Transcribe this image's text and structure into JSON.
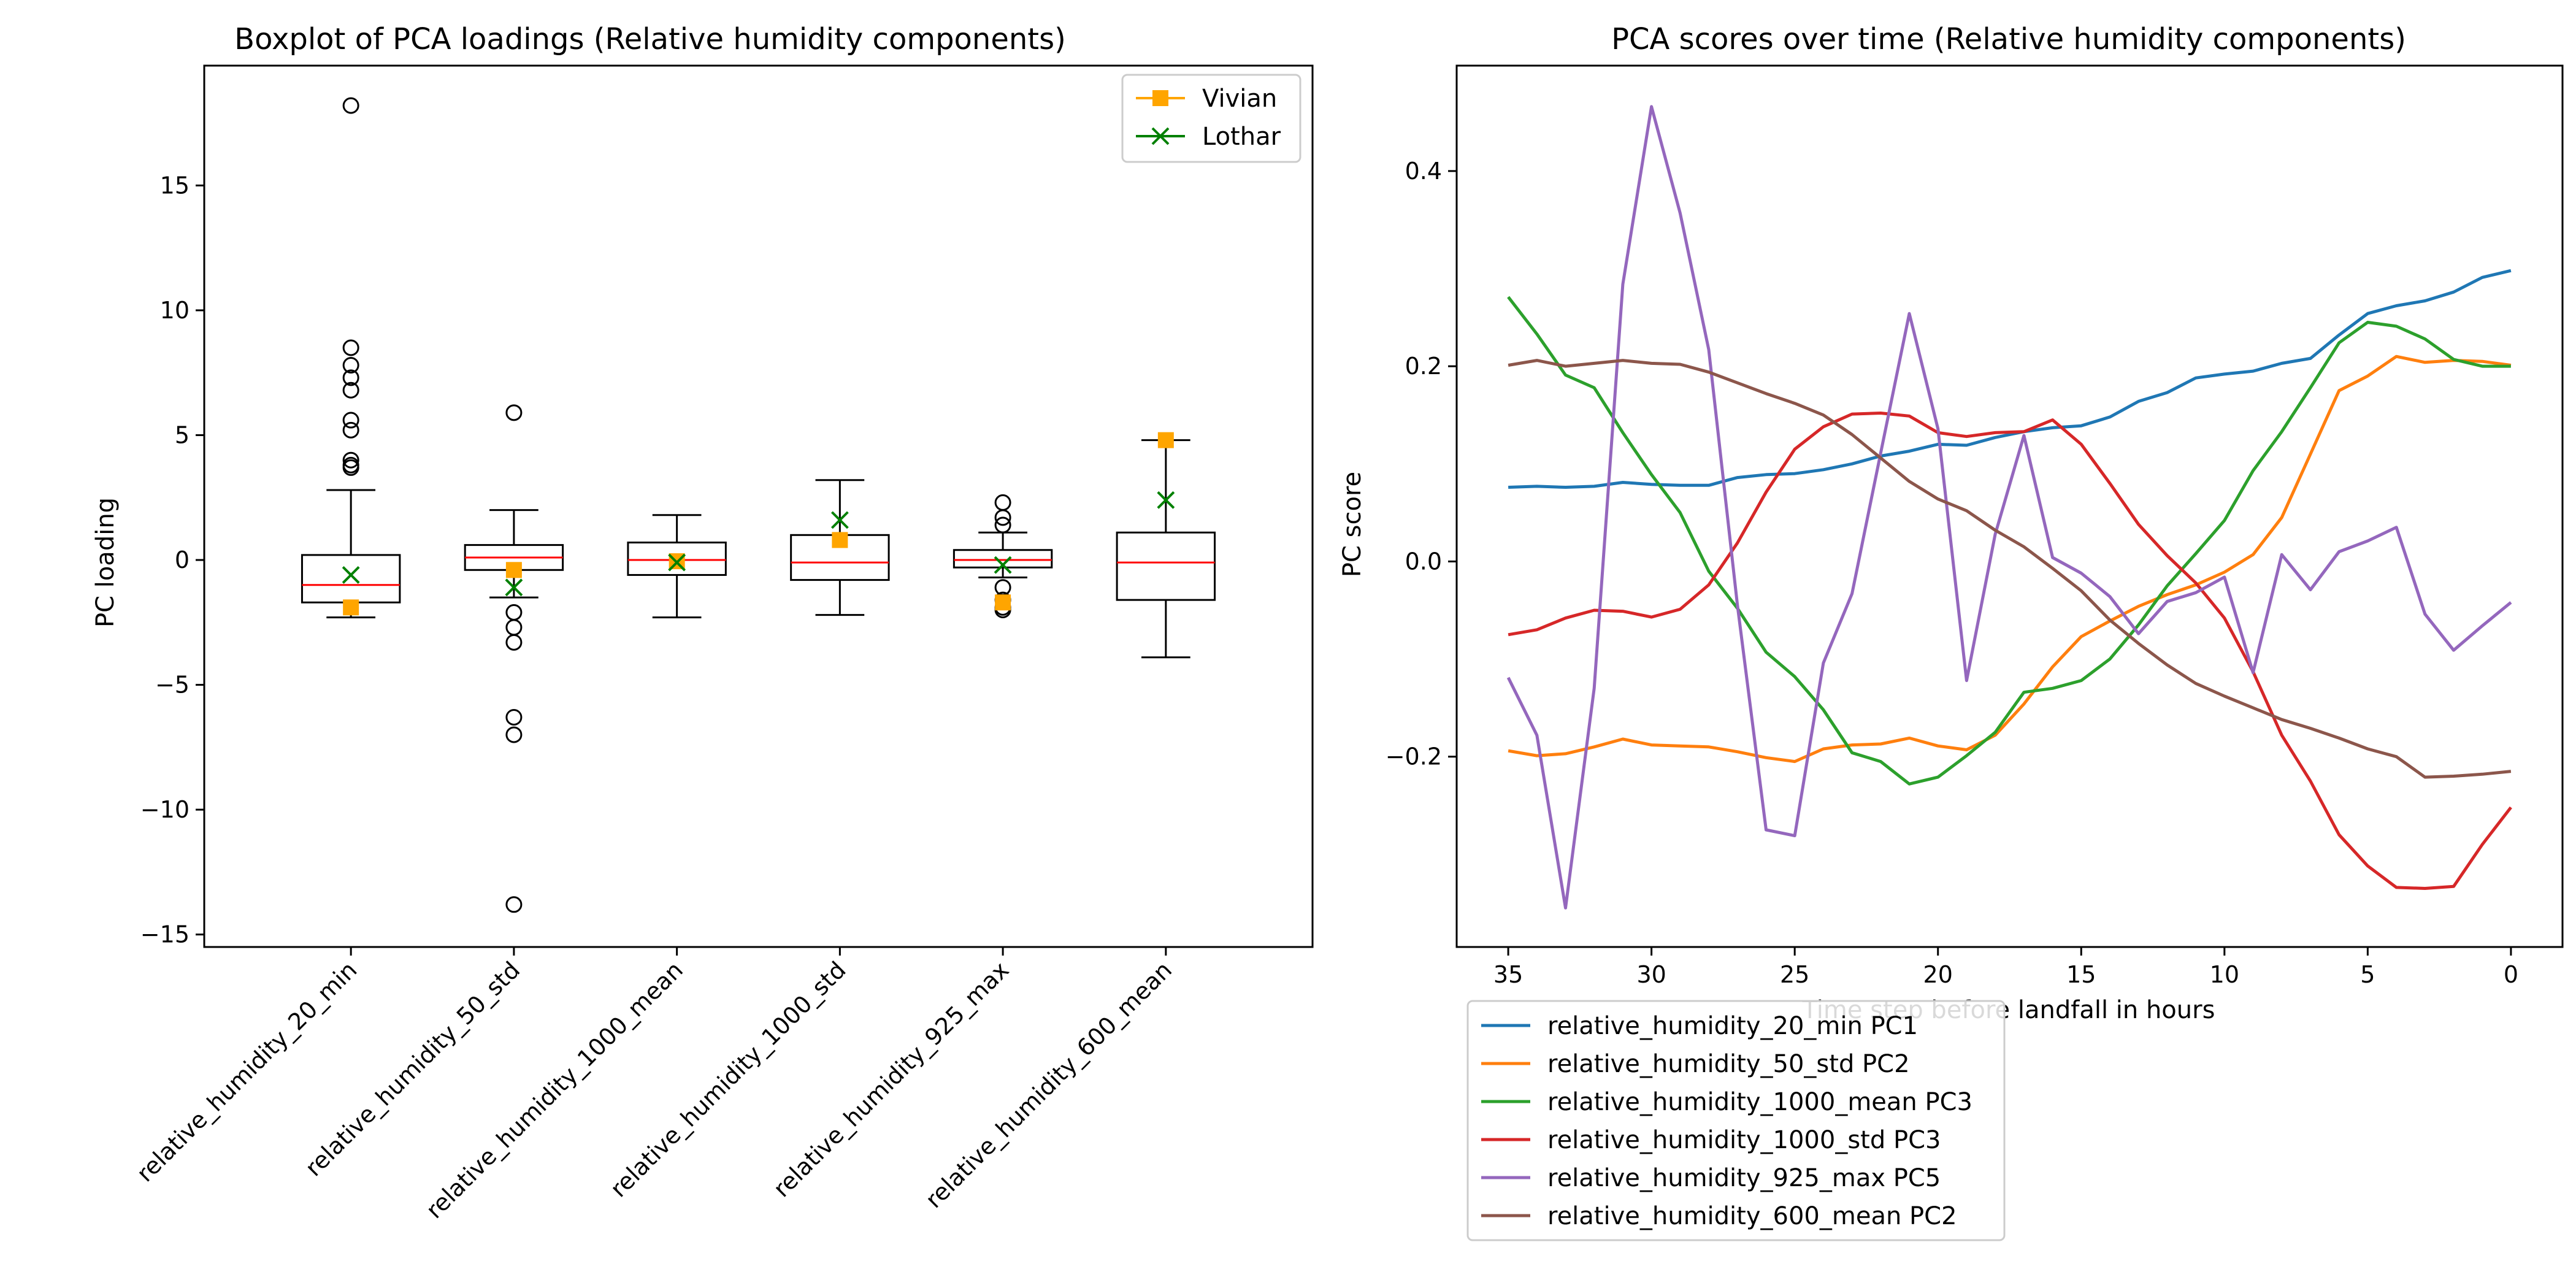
{
  "chart_data": [
    {
      "type": "boxplot",
      "title": "Boxplot of PCA loadings (Relative humidity components)",
      "xlabel": "",
      "ylabel": "PC loading",
      "ylim": [
        -15.5,
        19.8
      ],
      "yticks": [
        -15,
        -10,
        -5,
        0,
        5,
        10,
        15
      ],
      "categories": [
        "relative_humidity_20_min",
        "relative_humidity_50_std",
        "relative_humidity_1000_mean",
        "relative_humidity_1000_std",
        "relative_humidity_925_max",
        "relative_humidity_600_mean"
      ],
      "boxes": [
        {
          "q1": -1.7,
          "median": -1.0,
          "q3": 0.2,
          "whisker_low": -2.3,
          "whisker_high": 2.8,
          "fliers": [
            18.2,
            8.5,
            7.8,
            7.3,
            6.8,
            5.6,
            5.2,
            4.0,
            3.8,
            3.7
          ]
        },
        {
          "q1": -0.4,
          "median": 0.1,
          "q3": 0.6,
          "whisker_low": -1.5,
          "whisker_high": 2.0,
          "fliers": [
            5.9,
            -2.1,
            -2.7,
            -3.3,
            -6.3,
            -7.0,
            -13.8
          ]
        },
        {
          "q1": -0.6,
          "median": 0.0,
          "q3": 0.7,
          "whisker_low": -2.3,
          "whisker_high": 1.8,
          "fliers": []
        },
        {
          "q1": -0.8,
          "median": -0.1,
          "q3": 1.0,
          "whisker_low": -2.2,
          "whisker_high": 3.2,
          "fliers": []
        },
        {
          "q1": -0.3,
          "median": 0.0,
          "q3": 0.4,
          "whisker_low": -0.7,
          "whisker_high": 1.1,
          "fliers": [
            2.3,
            1.7,
            1.4,
            -1.1,
            -1.6,
            -1.9,
            -2.0
          ]
        },
        {
          "q1": -1.6,
          "median": -0.1,
          "q3": 1.1,
          "whisker_low": -3.9,
          "whisker_high": 4.8,
          "fliers": []
        }
      ],
      "overlay_series": [
        {
          "name": "Vivian",
          "marker": "square",
          "color": "#FFA500",
          "values": [
            -1.9,
            -0.4,
            -0.05,
            0.8,
            -1.7,
            4.8
          ]
        },
        {
          "name": "Lothar",
          "marker": "x",
          "color": "#008000",
          "values": [
            -0.6,
            -1.1,
            -0.1,
            1.6,
            -0.2,
            2.4
          ]
        }
      ],
      "legend_position": "upper right"
    },
    {
      "type": "line",
      "title": "PCA scores over time (Relative humidity components)",
      "xlabel": "Time step before landfall in hours",
      "ylabel": "PC score",
      "xlim": [
        36.8,
        -1.8
      ],
      "ylim": [
        -0.395,
        0.508
      ],
      "xticks": [
        35,
        30,
        25,
        20,
        15,
        10,
        5,
        0
      ],
      "yticks": [
        -0.2,
        0.0,
        0.2,
        0.4
      ],
      "x": [
        35,
        34,
        33,
        32,
        31,
        30,
        29,
        28,
        27,
        26,
        25,
        24,
        23,
        22,
        21,
        20,
        19,
        18,
        17,
        16,
        15,
        14,
        13,
        12,
        11,
        10,
        9,
        8,
        7,
        6,
        5,
        4,
        3,
        2,
        1,
        0
      ],
      "series": [
        {
          "name": "relative_humidity_20_min PC1",
          "color": "#1f77b4",
          "values": [
            0.076,
            0.077,
            0.076,
            0.077,
            0.081,
            0.079,
            0.078,
            0.078,
            0.086,
            0.089,
            0.09,
            0.094,
            0.1,
            0.108,
            0.113,
            0.12,
            0.119,
            0.127,
            0.133,
            0.137,
            0.139,
            0.148,
            0.164,
            0.173,
            0.188,
            0.192,
            0.195,
            0.203,
            0.208,
            0.232,
            0.254,
            0.262,
            0.267,
            0.276,
            0.291,
            0.298
          ]
        },
        {
          "name": "relative_humidity_50_std PC2",
          "color": "#ff7f0e",
          "values": [
            -0.194,
            -0.199,
            -0.197,
            -0.19,
            -0.182,
            -0.188,
            -0.189,
            -0.19,
            -0.195,
            -0.201,
            -0.205,
            -0.192,
            -0.188,
            -0.187,
            -0.181,
            -0.189,
            -0.193,
            -0.178,
            -0.146,
            -0.108,
            -0.077,
            -0.061,
            -0.046,
            -0.034,
            -0.024,
            -0.011,
            0.007,
            0.045,
            0.11,
            0.175,
            0.19,
            0.21,
            0.204,
            0.206,
            0.205,
            0.201
          ]
        },
        {
          "name": "relative_humidity_1000_mean PC3",
          "color": "#2ca02c",
          "values": [
            0.271,
            0.233,
            0.191,
            0.178,
            0.132,
            0.089,
            0.05,
            -0.01,
            -0.048,
            -0.093,
            -0.118,
            -0.152,
            -0.196,
            -0.205,
            -0.228,
            -0.221,
            -0.199,
            -0.175,
            -0.134,
            -0.13,
            -0.122,
            -0.1,
            -0.065,
            -0.025,
            0.008,
            0.042,
            0.093,
            0.133,
            0.178,
            0.224,
            0.245,
            0.241,
            0.228,
            0.207,
            0.2,
            0.2
          ]
        },
        {
          "name": "relative_humidity_1000_std PC3",
          "color": "#d62728",
          "values": [
            -0.075,
            -0.07,
            -0.058,
            -0.05,
            -0.051,
            -0.057,
            -0.049,
            -0.024,
            0.019,
            0.071,
            0.115,
            0.138,
            0.151,
            0.152,
            0.149,
            0.132,
            0.128,
            0.132,
            0.133,
            0.145,
            0.12,
            0.08,
            0.038,
            0.006,
            -0.022,
            -0.058,
            -0.113,
            -0.178,
            -0.225,
            -0.28,
            -0.312,
            -0.334,
            -0.335,
            -0.333,
            -0.29,
            -0.252
          ]
        },
        {
          "name": "relative_humidity_925_max PC5",
          "color": "#9467bd",
          "values": [
            -0.119,
            -0.178,
            -0.355,
            -0.13,
            0.284,
            0.466,
            0.357,
            0.217,
            -0.045,
            -0.275,
            -0.281,
            -0.104,
            -0.033,
            0.111,
            0.254,
            0.136,
            -0.122,
            0.028,
            0.129,
            0.004,
            -0.012,
            -0.036,
            -0.074,
            -0.041,
            -0.032,
            -0.016,
            -0.114,
            0.007,
            -0.029,
            0.01,
            0.021,
            0.035,
            -0.054,
            -0.091,
            -0.066,
            -0.042
          ]
        },
        {
          "name": "relative_humidity_600_mean PC2",
          "color": "#8c564b",
          "values": [
            0.201,
            0.206,
            0.2,
            0.203,
            0.206,
            0.203,
            0.202,
            0.194,
            0.183,
            0.172,
            0.162,
            0.15,
            0.13,
            0.106,
            0.082,
            0.064,
            0.052,
            0.032,
            0.015,
            -0.007,
            -0.03,
            -0.06,
            -0.084,
            -0.106,
            -0.125,
            -0.138,
            -0.15,
            -0.162,
            -0.171,
            -0.181,
            -0.192,
            -0.2,
            -0.221,
            -0.22,
            -0.218,
            -0.215
          ]
        }
      ],
      "legend_position": "below"
    }
  ]
}
